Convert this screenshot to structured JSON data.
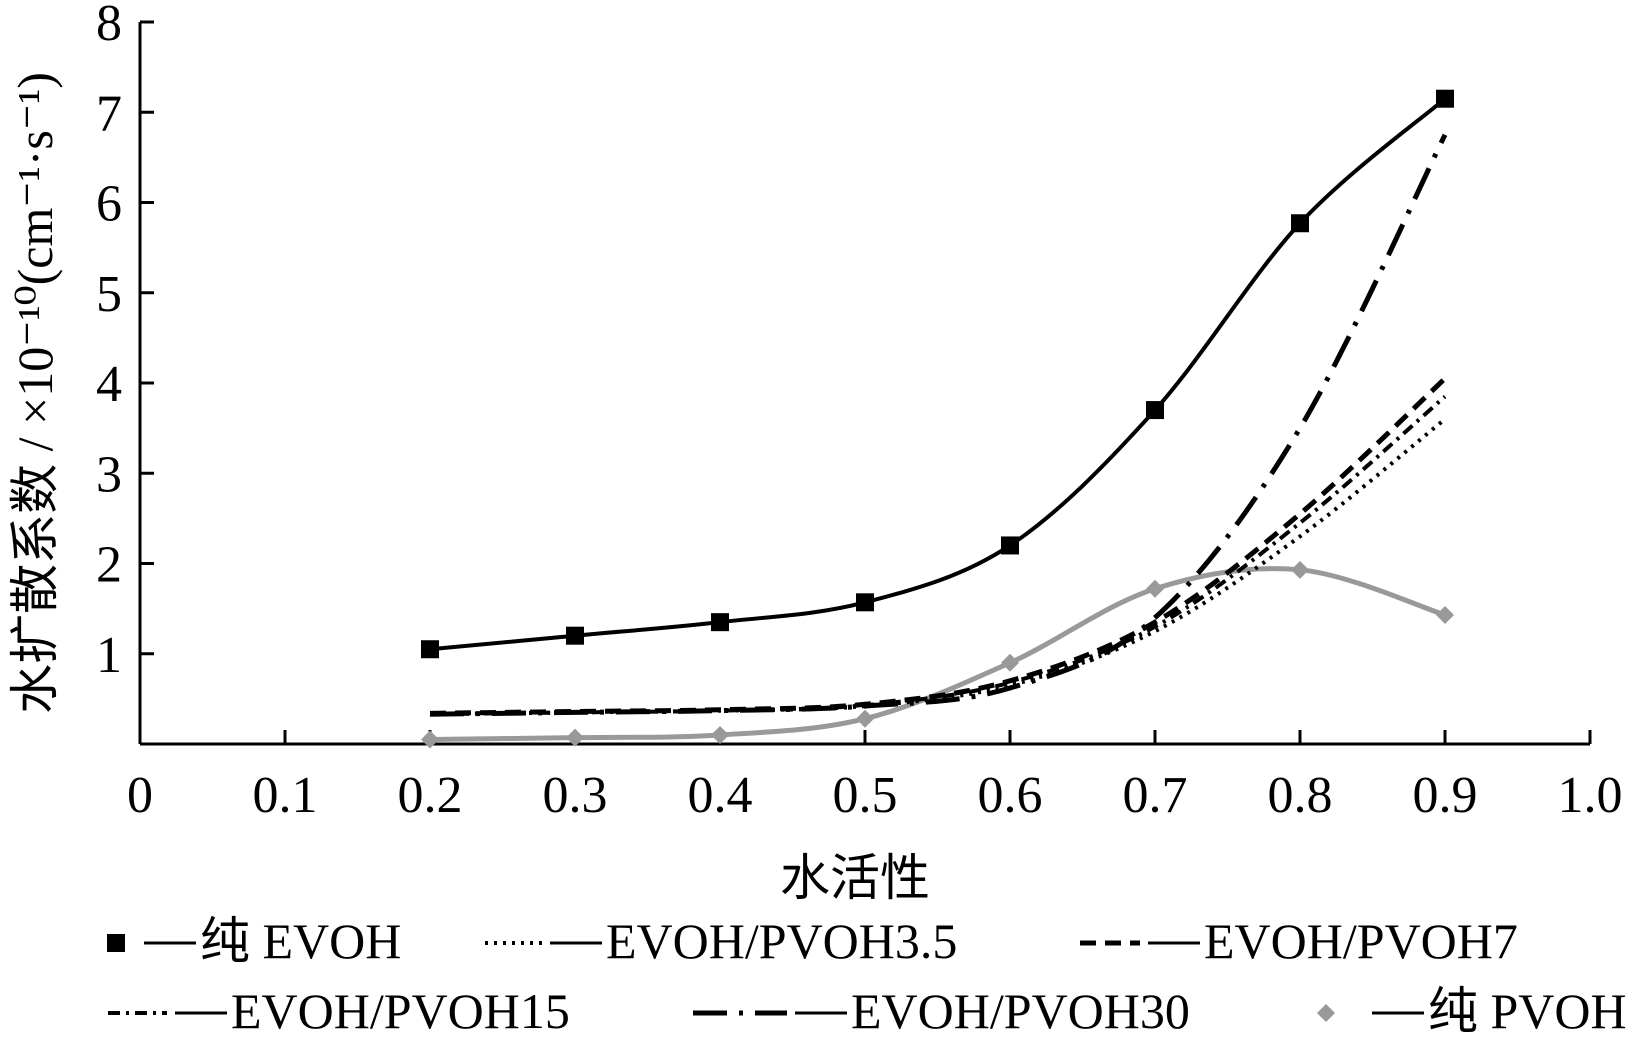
{
  "chart_data": {
    "type": "line",
    "title": "",
    "xlabel": "水活性",
    "ylabel": "水扩散系数 / ×10⁻¹⁰(cm⁻¹·s⁻¹)",
    "xlim": [
      0,
      1.0
    ],
    "ylim": [
      0,
      8
    ],
    "x_ticks": [
      "0",
      "0.1",
      "0.2",
      "0.3",
      "0.4",
      "0.5",
      "0.6",
      "0.7",
      "0.8",
      "0.9",
      "1.0"
    ],
    "y_ticks": [
      "1",
      "2",
      "3",
      "4",
      "5",
      "6",
      "7",
      "8"
    ],
    "grid": false,
    "legend_position": "bottom",
    "x": [
      0.2,
      0.3,
      0.4,
      0.5,
      0.6,
      0.7,
      0.8,
      0.9
    ],
    "series": [
      {
        "name": "纯 EVOH",
        "style": "solid-square-markers",
        "color": "#000000",
        "values": [
          1.05,
          1.2,
          1.35,
          1.57,
          2.2,
          3.7,
          5.77,
          7.15
        ]
      },
      {
        "name": "EVOH/PVOH3.5",
        "style": "dotted",
        "color": "#000000",
        "values": [
          0.33,
          0.35,
          0.37,
          0.42,
          0.65,
          1.25,
          2.3,
          3.6
        ]
      },
      {
        "name": "EVOH/PVOH7",
        "style": "dashed",
        "color": "#000000",
        "values": [
          0.34,
          0.36,
          0.38,
          0.44,
          0.7,
          1.35,
          2.55,
          4.05
        ]
      },
      {
        "name": "EVOH/PVOH15",
        "style": "dash-dot-fine",
        "color": "#000000",
        "values": [
          0.33,
          0.35,
          0.37,
          0.43,
          0.68,
          1.3,
          2.45,
          3.85
        ]
      },
      {
        "name": "EVOH/PVOH30",
        "style": "long-dash-dot",
        "color": "#000000",
        "values": [
          0.33,
          0.35,
          0.37,
          0.42,
          0.62,
          1.4,
          3.5,
          6.75
        ]
      },
      {
        "name": "纯 PVOH",
        "style": "gray-diamond-markers",
        "color": "#999999",
        "values": [
          0.05,
          0.07,
          0.1,
          0.28,
          0.9,
          1.72,
          1.93,
          1.43
        ]
      }
    ]
  }
}
